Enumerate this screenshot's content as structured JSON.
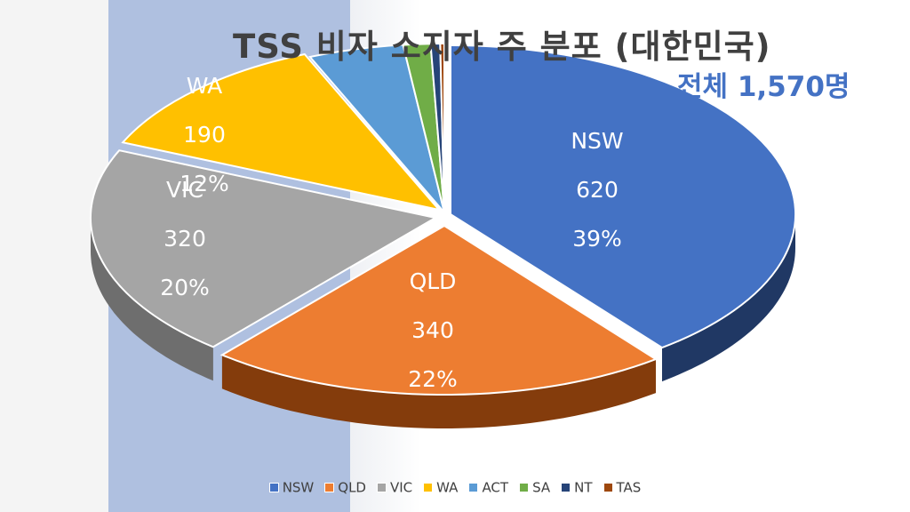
{
  "title": "TSS 비자 소지자 주 분포 (대한민국)",
  "total_label": "전체 1,570명",
  "chart_data": {
    "type": "pie",
    "title": "TSS 비자 소지자 주 분포 (대한민국)",
    "subtitle": "전체 1,570명",
    "legend_position": "bottom",
    "slices": [
      {
        "name": "NSW",
        "value": 620,
        "percent": "39%",
        "color": "#4472c4",
        "side": "#203864",
        "label_color": "#ffffff"
      },
      {
        "name": "QLD",
        "value": 340,
        "percent": "22%",
        "color": "#ed7d31",
        "side": "#843c0c",
        "label_color": "#ffffff"
      },
      {
        "name": "VIC",
        "value": 320,
        "percent": "20%",
        "color": "#a5a5a5",
        "side": "#6e6e6e",
        "label_color": "#ffffff"
      },
      {
        "name": "WA",
        "value": 190,
        "percent": "12%",
        "color": "#ffc000",
        "side": "#a07900",
        "label_color": "#ffffff"
      },
      {
        "name": "ACT",
        "value": 70,
        "color": "#5b9bd5",
        "side": "#2e6aa0"
      },
      {
        "name": "SA",
        "value": 20,
        "color": "#70ad47",
        "side": "#436e28"
      },
      {
        "name": "NT",
        "value": 7,
        "color": "#264478",
        "side": "#14264a"
      },
      {
        "name": "TAS",
        "value": 3,
        "color": "#9e480e",
        "side": "#5e2a08"
      }
    ]
  }
}
